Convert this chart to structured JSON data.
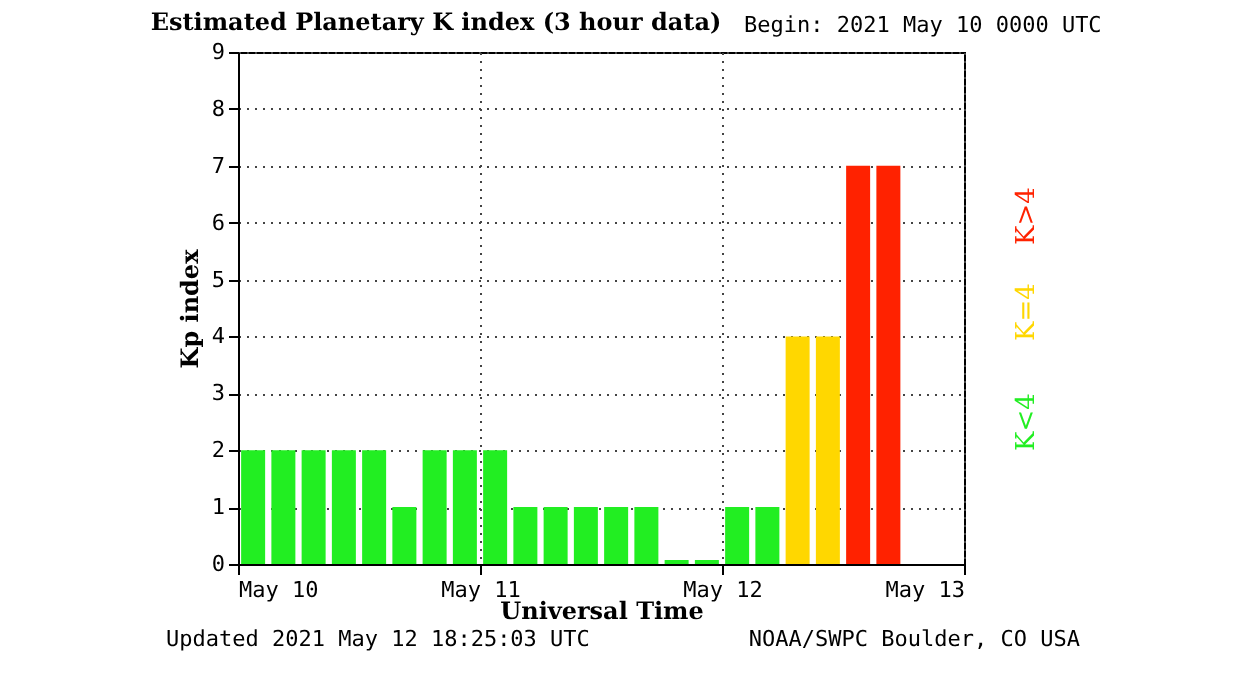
{
  "chart_data": {
    "type": "bar",
    "title": "Estimated Planetary K index (3 hour data)",
    "xlabel": "Universal Time",
    "ylabel": "Kp index",
    "x": [
      "2021-05-10T01:30",
      "2021-05-10T04:30",
      "2021-05-10T07:30",
      "2021-05-10T10:30",
      "2021-05-10T13:30",
      "2021-05-10T16:30",
      "2021-05-10T19:30",
      "2021-05-10T22:30",
      "2021-05-11T01:30",
      "2021-05-11T04:30",
      "2021-05-11T07:30",
      "2021-05-11T10:30",
      "2021-05-11T13:30",
      "2021-05-11T16:30",
      "2021-05-11T19:30",
      "2021-05-11T22:30",
      "2021-05-12T01:30",
      "2021-05-12T04:30",
      "2021-05-12T07:30",
      "2021-05-12T10:30",
      "2021-05-12T13:30",
      "2021-05-12T16:30"
    ],
    "values": [
      2,
      2,
      2,
      2,
      2,
      1,
      2,
      2,
      2,
      1,
      1,
      1,
      1,
      1,
      0.07,
      0.07,
      1,
      1,
      4,
      4,
      7,
      7
    ],
    "colors": [
      "#22ee22",
      "#22ee22",
      "#22ee22",
      "#22ee22",
      "#22ee22",
      "#22ee22",
      "#22ee22",
      "#22ee22",
      "#22ee22",
      "#22ee22",
      "#22ee22",
      "#22ee22",
      "#22ee22",
      "#22ee22",
      "#22ee22",
      "#22ee22",
      "#22ee22",
      "#22ee22",
      "#ffd700",
      "#ffd700",
      "#ff2200",
      "#ff2200"
    ],
    "xlim": [
      "2021-05-10",
      "2021-05-13"
    ],
    "xticks": [
      {
        "value": "2021-05-10",
        "label": "May 10"
      },
      {
        "value": "2021-05-11",
        "label": "May 11"
      },
      {
        "value": "2021-05-12",
        "label": "May 12"
      },
      {
        "value": "2021-05-13",
        "label": "May 13"
      }
    ],
    "ylim": [
      0,
      9
    ],
    "yticks": [
      0,
      1,
      2,
      3,
      4,
      5,
      6,
      7,
      8,
      9
    ],
    "grid": true,
    "line_style": "dotted",
    "annotations": [
      "Begin: 2021 May 10 0000 UTC",
      "Updated 2021 May 12 18:25:03 UTC",
      "NOAA/SWPC Boulder, CO USA",
      "K>4",
      "K=4",
      "K<4"
    ]
  }
}
